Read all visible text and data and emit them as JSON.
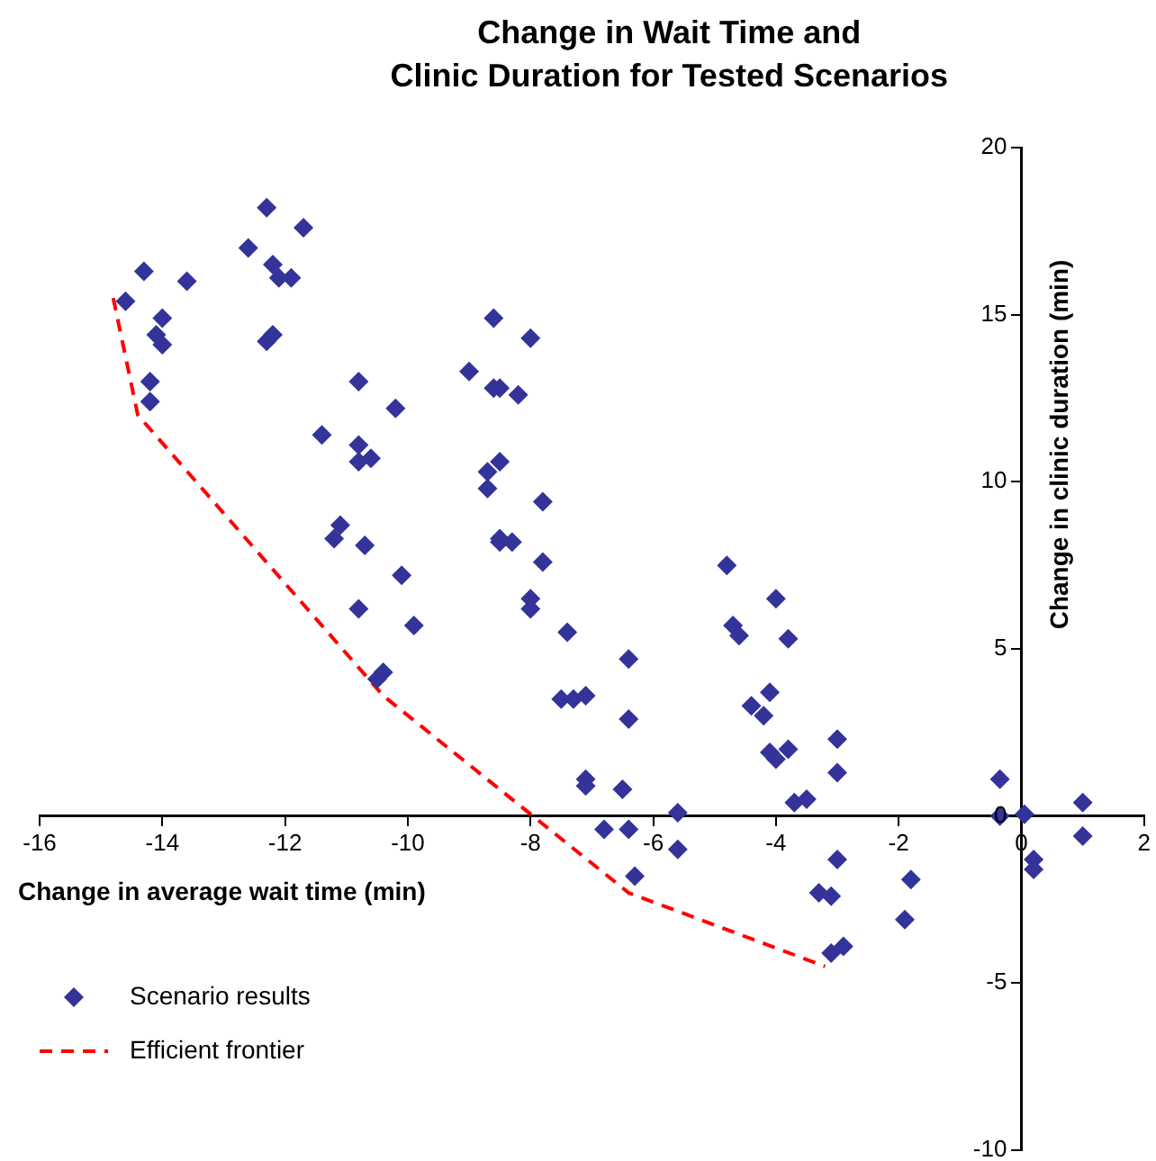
{
  "chart_data": {
    "type": "scatter",
    "title": "Change in Wait Time and\nClinic Duration for Tested Scenarios",
    "xlabel": "Change in average wait time (min)",
    "ylabel": "Change in clinic duration (min)",
    "xlim": [
      -16,
      2
    ],
    "xticks": [
      -16,
      -14,
      -12,
      -10,
      -8,
      -6,
      -4,
      -2,
      0,
      2
    ],
    "ylim": [
      -10,
      20
    ],
    "yticks": [
      -10,
      -5,
      0,
      5,
      10,
      15,
      20
    ],
    "legend": "bottom left",
    "series": [
      {
        "name": "Scenario results",
        "type": "scatter",
        "marker": "diamond",
        "color": "#333399",
        "x": [
          -14.3,
          -14.6,
          -13.6,
          -14.0,
          -14.1,
          -14.0,
          -14.2,
          -14.2,
          -12.3,
          -12.6,
          -11.7,
          -12.2,
          -12.1,
          -11.9,
          -12.2,
          -12.3,
          -10.8,
          -10.2,
          -11.4,
          -10.8,
          -10.6,
          -10.8,
          -11.1,
          -11.2,
          -10.7,
          -10.1,
          -10.8,
          -9.9,
          -10.4,
          -10.5,
          -8.6,
          -8.0,
          -9.0,
          -8.6,
          -8.5,
          -8.2,
          -8.5,
          -8.7,
          -8.7,
          -7.8,
          -8.5,
          -8.5,
          -8.3,
          -7.8,
          -8.0,
          -8.0,
          -7.4,
          -6.4,
          -7.5,
          -7.3,
          -7.1,
          -6.4,
          -7.1,
          -7.1,
          -6.5,
          -6.8,
          -6.4,
          -5.6,
          -5.6,
          -6.3,
          -4.8,
          -4.0,
          -4.7,
          -4.6,
          -3.8,
          -4.1,
          -4.4,
          -4.2,
          -4.1,
          -4.0,
          -3.8,
          -3.0,
          -3.0,
          -3.7,
          -3.5,
          -3.0,
          -3.3,
          -3.1,
          -3.1,
          -2.9,
          -1.8,
          -1.9,
          -0.35,
          -0.35,
          0.05,
          1.0,
          1.0,
          0.2,
          0.2
        ],
        "values": [
          16.3,
          15.4,
          16.0,
          14.9,
          14.4,
          14.1,
          13.0,
          12.4,
          18.2,
          17.0,
          17.6,
          16.5,
          16.1,
          16.1,
          14.4,
          14.2,
          13.0,
          12.2,
          11.4,
          11.1,
          10.7,
          10.6,
          8.7,
          8.3,
          8.1,
          7.2,
          6.2,
          5.7,
          4.3,
          4.1,
          14.9,
          14.3,
          13.3,
          12.8,
          12.8,
          12.6,
          10.6,
          10.3,
          9.8,
          9.4,
          8.3,
          8.2,
          8.2,
          7.6,
          6.5,
          6.2,
          5.5,
          4.7,
          3.5,
          3.5,
          3.6,
          2.9,
          1.1,
          0.9,
          0.8,
          -0.4,
          -0.4,
          0.1,
          -1.0,
          -1.8,
          7.5,
          6.5,
          5.7,
          5.4,
          5.3,
          3.7,
          3.3,
          3.0,
          1.9,
          1.7,
          2.0,
          2.3,
          1.3,
          0.4,
          0.5,
          -1.3,
          -2.3,
          -2.4,
          -4.1,
          -3.9,
          -1.9,
          -3.1,
          1.1,
          0.0,
          0.05,
          0.4,
          -0.6,
          -1.3,
          -1.6
        ]
      },
      {
        "name": "Efficient frontier",
        "type": "line",
        "marker": "none",
        "line_style": "dashed",
        "color": "#ff0000",
        "x": [
          -14.8,
          -14.4,
          -10.4,
          -8.3,
          -6.4,
          -3.2
        ],
        "values": [
          15.5,
          12.0,
          3.6,
          0.5,
          -2.3,
          -4.5
        ]
      }
    ]
  }
}
